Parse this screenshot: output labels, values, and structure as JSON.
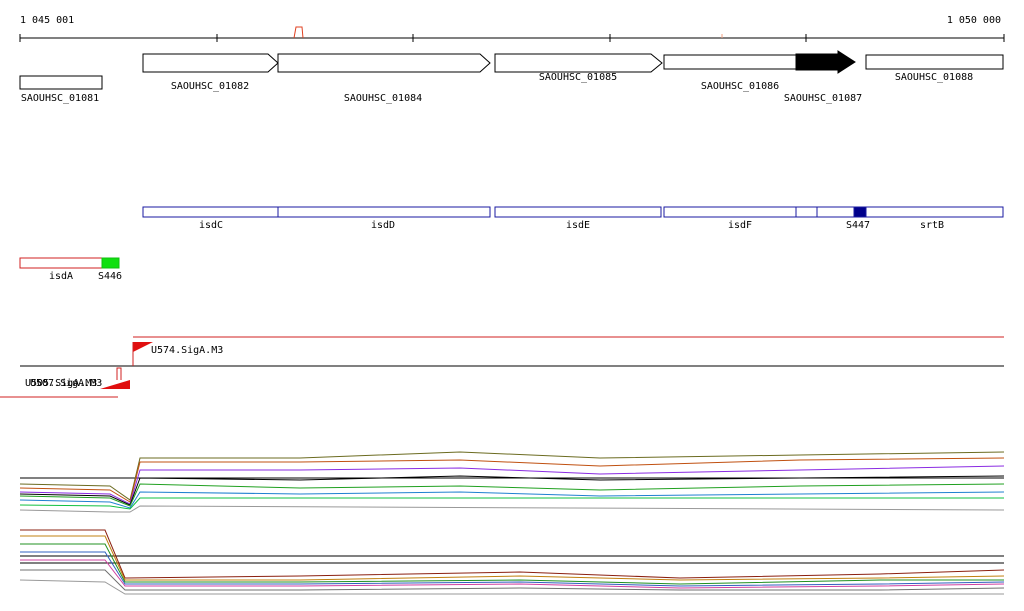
{
  "ruler": {
    "start": "1 045 001",
    "end": "1 050 000"
  },
  "genes": [
    "SAOUHSC_01081",
    "SAOUHSC_01082",
    "SAOUHSC_01084",
    "SAOUHSC_01085",
    "SAOUHSC_01086",
    "SAOUHSC_01087",
    "SAOUHSC_01088"
  ],
  "features": [
    "isdC",
    "isdD",
    "isdE",
    "isdF",
    "S447",
    "srtB",
    "isdA",
    "S446"
  ],
  "promoters": [
    "U574.SigA.M3",
    "U505.SigA.M3",
    "U507.SigA.M3"
  ]
}
